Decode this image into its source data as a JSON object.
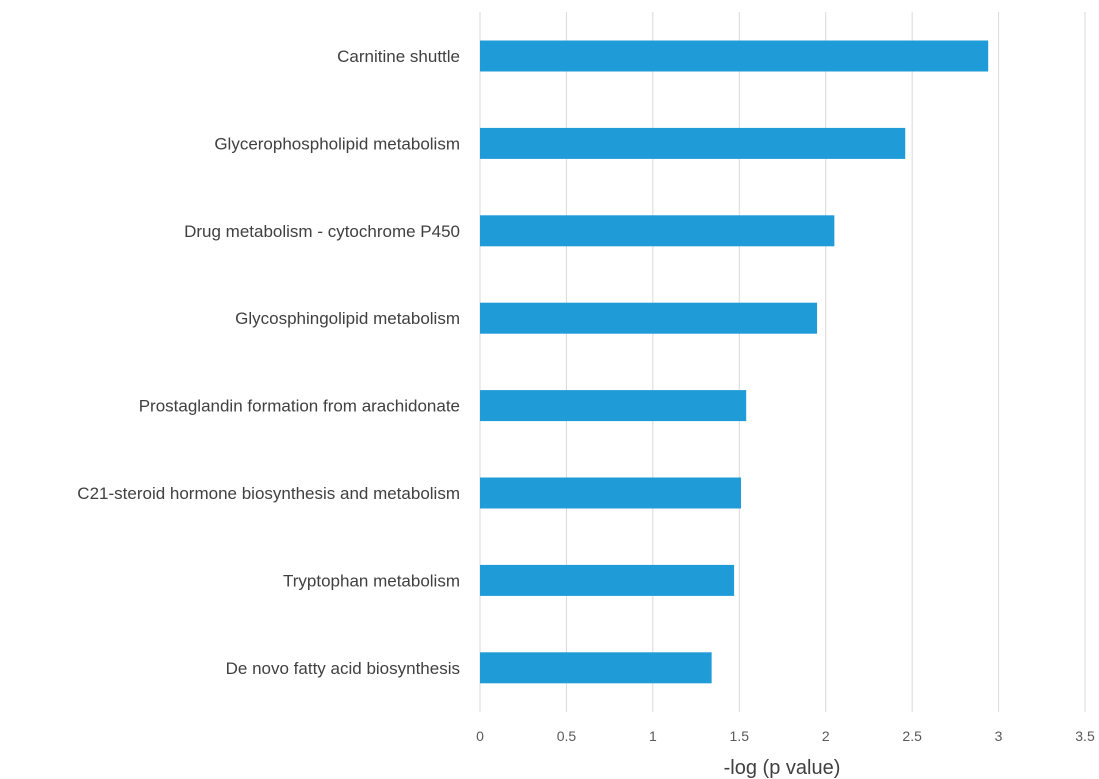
{
  "chart_data": {
    "type": "bar",
    "orientation": "horizontal",
    "categories": [
      "Carnitine shuttle",
      "Glycerophospholipid metabolism",
      "Drug metabolism - cytochrome P450",
      "Glycosphingolipid metabolism",
      "Prostaglandin formation from arachidonate",
      "C21-steroid hormone biosynthesis and metabolism",
      "Tryptophan metabolism",
      "De novo fatty acid biosynthesis"
    ],
    "values": [
      2.94,
      2.46,
      2.05,
      1.95,
      1.54,
      1.51,
      1.47,
      1.34
    ],
    "xlabel": "-log (p value)",
    "ylabel": "",
    "title": "",
    "xlim": [
      0,
      3.5
    ],
    "xticks": [
      "0",
      "0.5",
      "1",
      "1.5",
      "2",
      "2.5",
      "3",
      "3.5"
    ],
    "grid": true,
    "bar_color": "#1f9bd7"
  }
}
